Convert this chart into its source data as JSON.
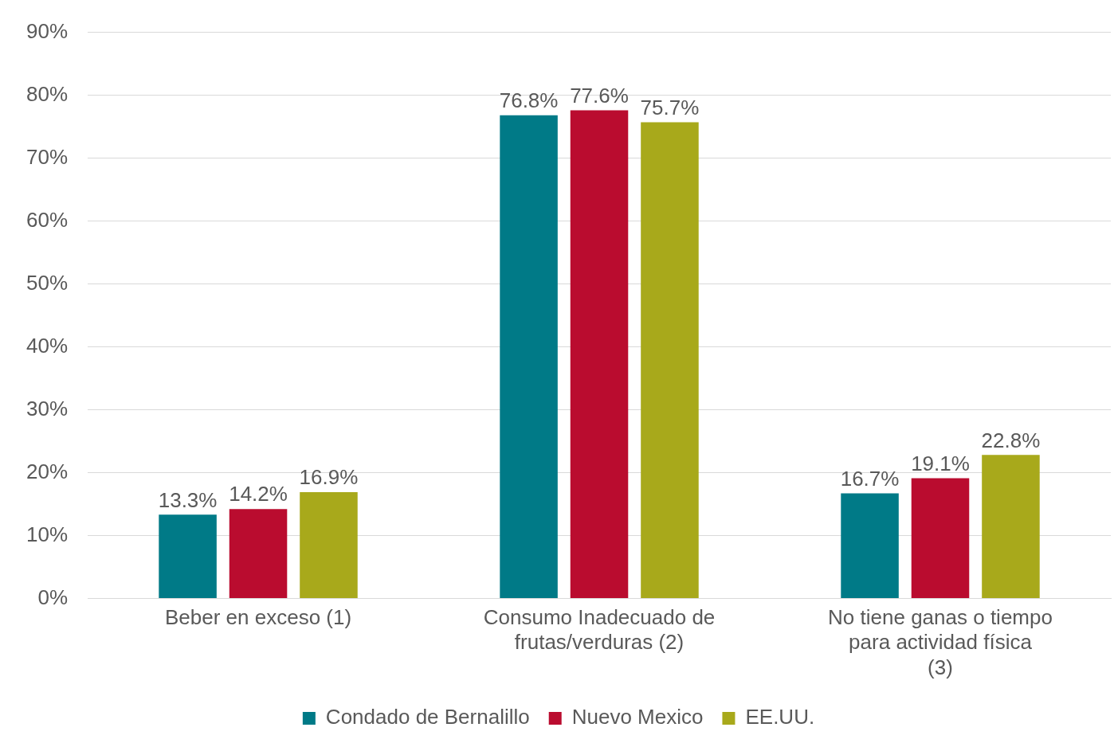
{
  "chart_data": {
    "type": "bar",
    "categories": [
      "Beber en exceso (1)",
      "Consumo Inadecuado de frutas/verduras (2)",
      "No tiene ganas o tiempo para actividad física (3)"
    ],
    "series": [
      {
        "name": "Condado de Bernalillo",
        "color": "#007a87",
        "values": [
          13.3,
          76.8,
          16.7
        ],
        "value_labels": [
          "13.3%",
          "76.8%",
          "16.7%"
        ]
      },
      {
        "name": "Nuevo Mexico",
        "color": "#ba0c2f",
        "values": [
          14.2,
          77.6,
          19.1
        ],
        "value_labels": [
          "14.2%",
          "77.6%",
          "19.1%"
        ]
      },
      {
        "name": "EE.UU.",
        "color": "#a8a91b",
        "values": [
          16.9,
          75.7,
          22.8
        ],
        "value_labels": [
          "16.9%",
          "75.7%",
          "22.8%"
        ]
      }
    ],
    "ylim": [
      0,
      90
    ],
    "yticks": [
      {
        "value": 0,
        "label": "0%"
      },
      {
        "value": 10,
        "label": "10%"
      },
      {
        "value": 20,
        "label": "20%"
      },
      {
        "value": 30,
        "label": "30%"
      },
      {
        "value": 40,
        "label": "40%"
      },
      {
        "value": 50,
        "label": "50%"
      },
      {
        "value": 60,
        "label": "60%"
      },
      {
        "value": 70,
        "label": "70%"
      },
      {
        "value": 80,
        "label": "80%"
      },
      {
        "value": 90,
        "label": "90%"
      }
    ],
    "grid": "y",
    "legend": "bottom"
  }
}
